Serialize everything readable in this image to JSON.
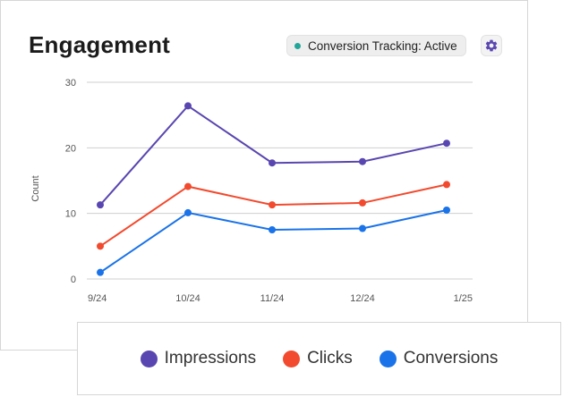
{
  "header": {
    "title": "Engagement",
    "status_label": "Conversion Tracking: Active",
    "status_color": "#22a699",
    "settings_icon": "gear-icon",
    "accent_color": "#5a46b0"
  },
  "chart_data": {
    "type": "line",
    "title": "Engagement",
    "xlabel": "",
    "ylabel": "Count",
    "categories": [
      "9/24",
      "10/24",
      "11/24",
      "12/24",
      "1/25"
    ],
    "ylim": [
      0,
      30
    ],
    "yticks": [
      0,
      10,
      20,
      30
    ],
    "grid": true,
    "legend_position": "bottom",
    "series": [
      {
        "name": "Impressions",
        "color": "#5a46b0",
        "values": [
          11.3,
          26.4,
          17.7,
          17.9,
          20.7
        ]
      },
      {
        "name": "Clicks",
        "color": "#f24a2e",
        "values": [
          5.0,
          14.1,
          11.3,
          11.6,
          14.4
        ]
      },
      {
        "name": "Conversions",
        "color": "#1a73e8",
        "values": [
          1.0,
          10.1,
          7.5,
          7.7,
          10.5
        ]
      }
    ]
  }
}
